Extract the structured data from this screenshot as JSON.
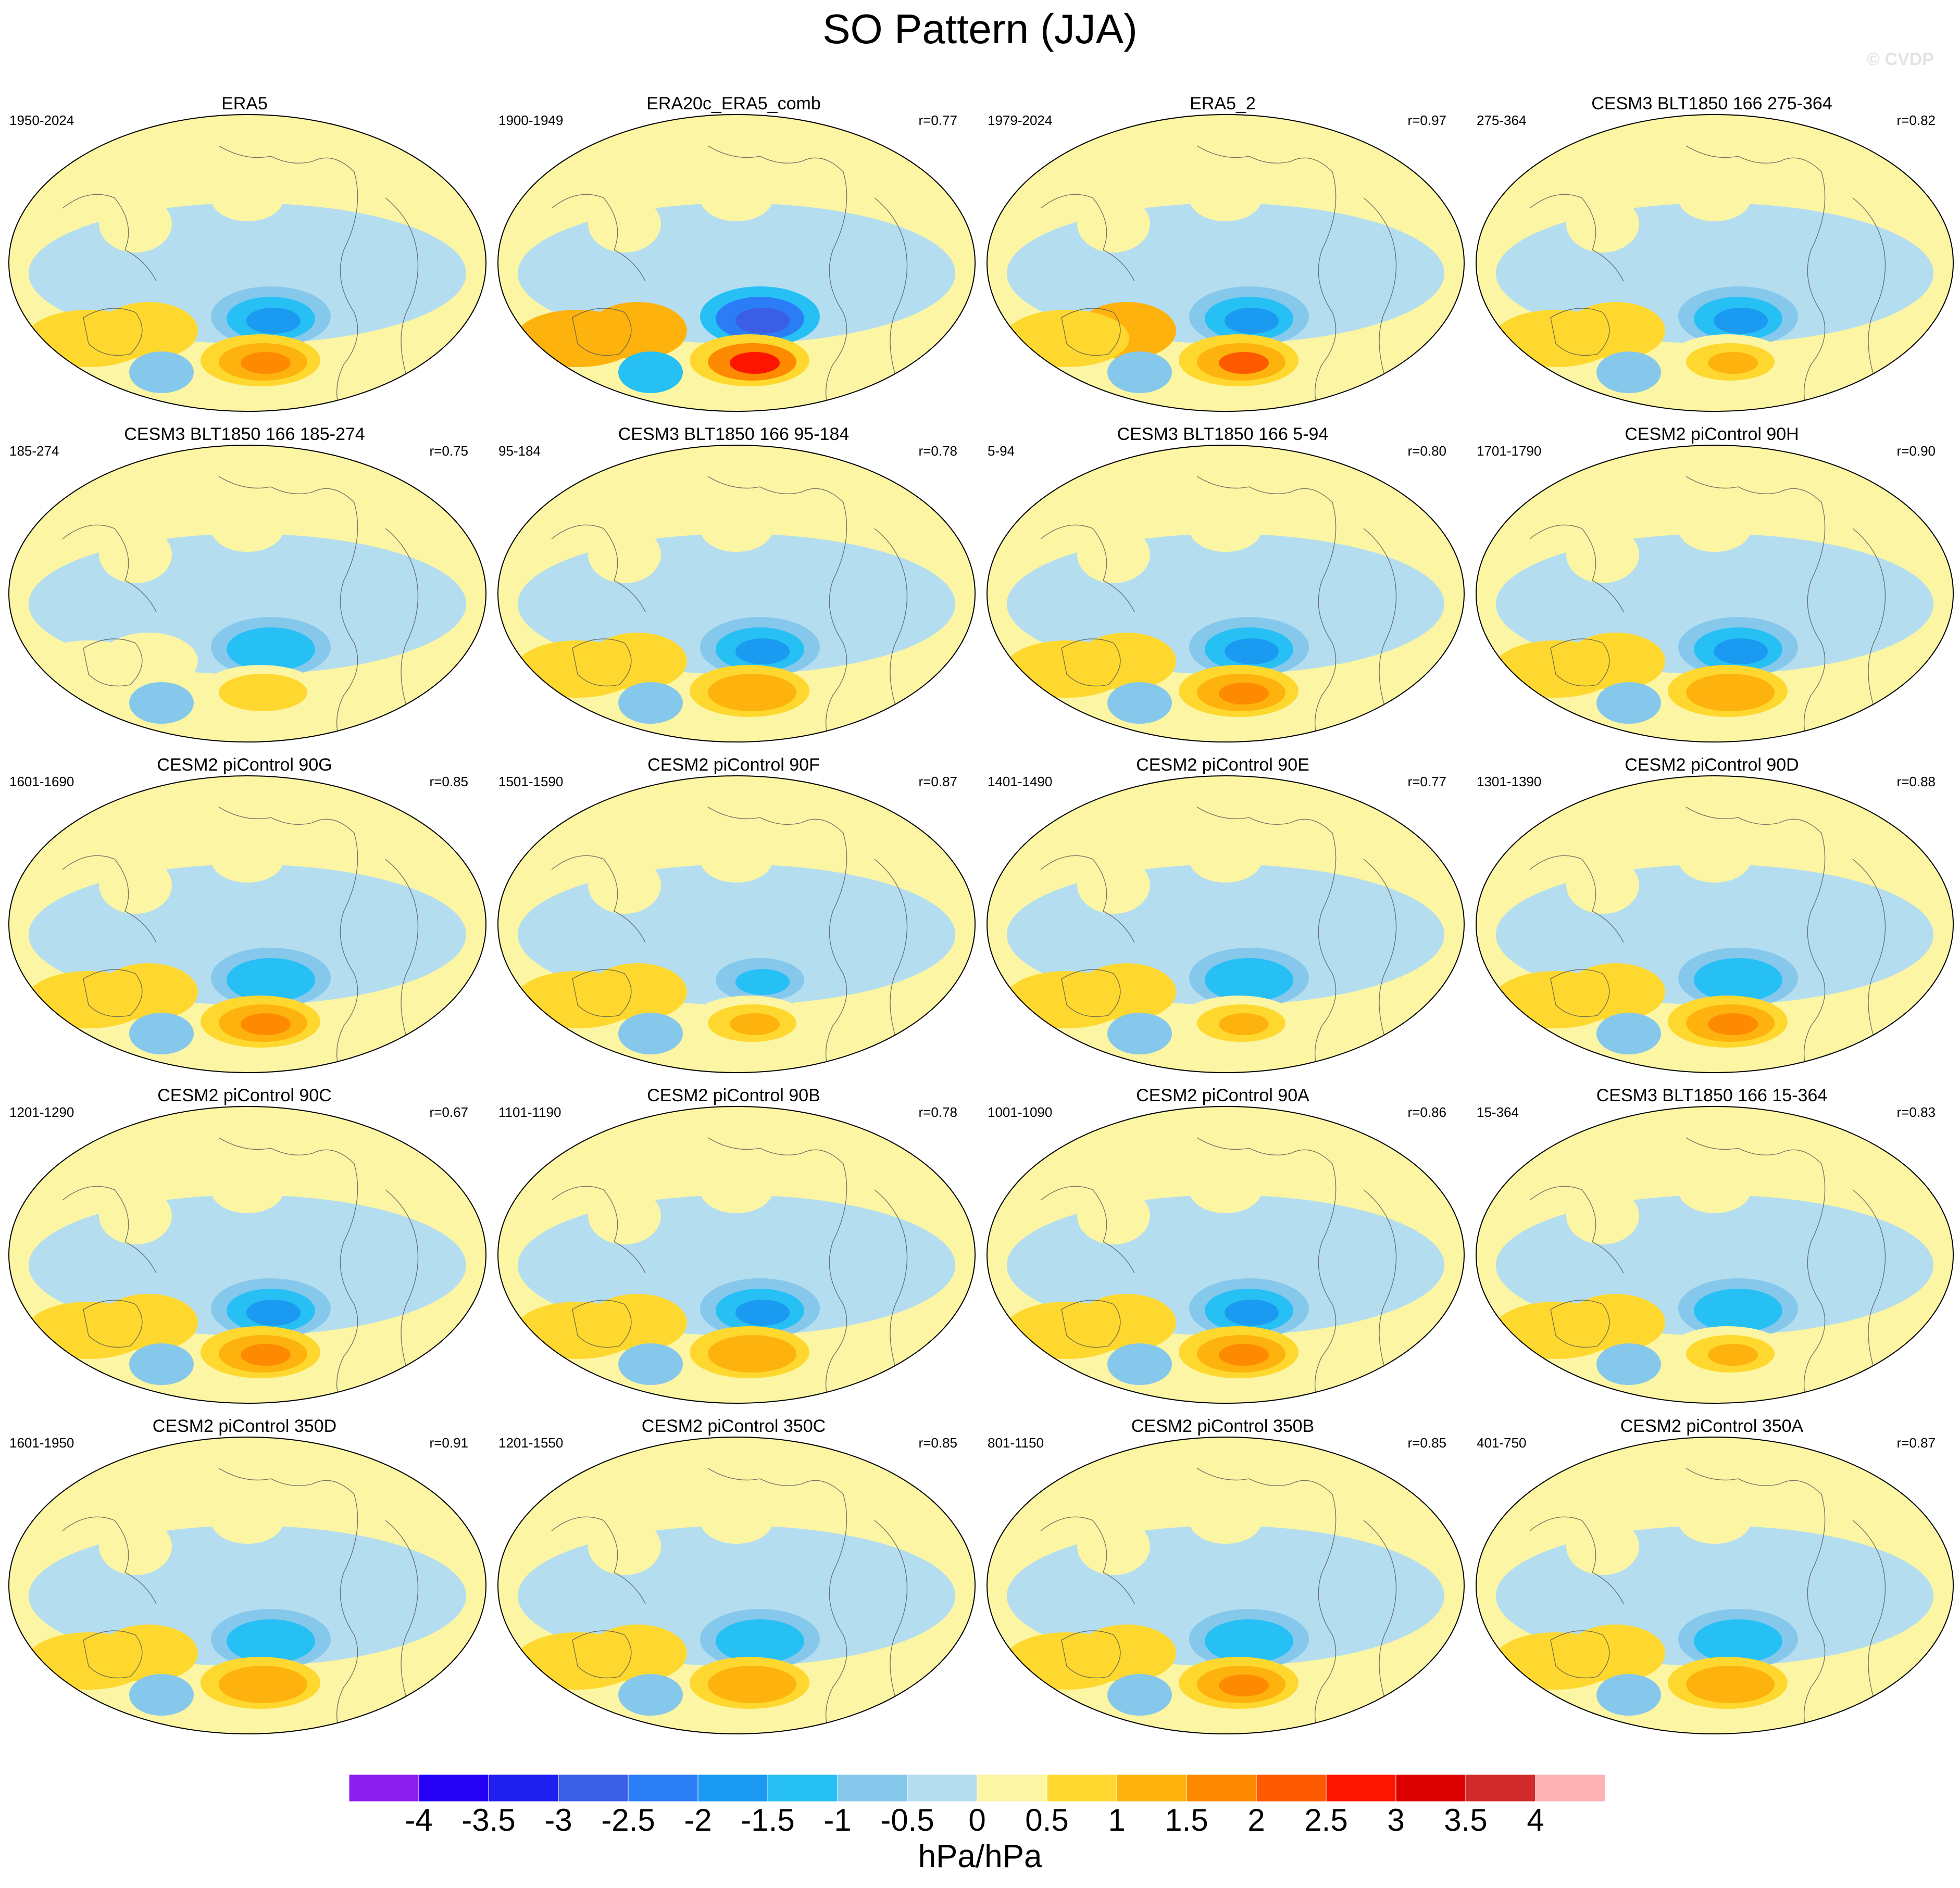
{
  "title": "SO Pattern (JJA)",
  "watermark": "© CVDP",
  "chart_data": {
    "type": "heatmap",
    "title": "SO Pattern (JJA)",
    "projection": "global map panels, 5 rows x 4 columns",
    "units": "hPa/hPa",
    "colorbar": {
      "ticks": [
        "-4",
        "-3.5",
        "-3",
        "-2.5",
        "-2",
        "-1.5",
        "-1",
        "-0.5",
        "0",
        "0.5",
        "1",
        "1.5",
        "2",
        "2.5",
        "3",
        "3.5",
        "4"
      ],
      "colors": [
        "#8a1ff0",
        "#2500f5",
        "#1f1ff0",
        "#3a5fe6",
        "#2b7df5",
        "#1a9af0",
        "#27c0f5",
        "#86c8ec",
        "#b4def0",
        "#fbf5a4",
        "#fed82e",
        "#fdb20e",
        "#fd8a00",
        "#fd5a00",
        "#fe1500",
        "#dd0000",
        "#d22a2a",
        "#fdb3b3"
      ]
    },
    "panels": [
      {
        "name": "ERA5",
        "years": "1950-2024",
        "r": "",
        "pos_amp": 2.2,
        "neg_amp": -1.9
      },
      {
        "name": "ERA20c_ERA5_comb",
        "years": "1900-1949",
        "r": "r=0.77",
        "pos_amp": 2.8,
        "neg_amp": -3.2
      },
      {
        "name": "ERA5_2",
        "years": "1979-2024",
        "r": "r=0.97",
        "pos_amp": 2.3,
        "neg_amp": -2.1
      },
      {
        "name": "CESM3 BLT1850 166 275-364",
        "years": "275-364",
        "r": "r=0.82",
        "pos_amp": 1.2,
        "neg_amp": -1.7
      },
      {
        "name": "CESM3 BLT1850 166 185-274",
        "years": "185-274",
        "r": "r=0.75",
        "pos_amp": 0.9,
        "neg_amp": -1.6
      },
      {
        "name": "CESM3 BLT1850 166 95-184",
        "years": "95-184",
        "r": "r=0.78",
        "pos_amp": 1.6,
        "neg_amp": -1.7
      },
      {
        "name": "CESM3 BLT1850 166 5-94",
        "years": "5-94",
        "r": "r=0.80",
        "pos_amp": 1.8,
        "neg_amp": -1.7
      },
      {
        "name": "CESM2 piControl 90H",
        "years": "1701-1790",
        "r": "r=0.90",
        "pos_amp": 1.6,
        "neg_amp": -1.7
      },
      {
        "name": "CESM2 piControl 90G",
        "years": "1601-1690",
        "r": "r=0.85",
        "pos_amp": 1.7,
        "neg_amp": -1.6
      },
      {
        "name": "CESM2 piControl 90F",
        "years": "1501-1590",
        "r": "r=0.87",
        "pos_amp": 1.3,
        "neg_amp": -1.4
      },
      {
        "name": "CESM2 piControl 90E",
        "years": "1401-1490",
        "r": "r=0.77",
        "pos_amp": 1.2,
        "neg_amp": -1.6
      },
      {
        "name": "CESM2 piControl 90D",
        "years": "1301-1390",
        "r": "r=0.88",
        "pos_amp": 1.8,
        "neg_amp": -1.6
      },
      {
        "name": "CESM2 piControl 90C",
        "years": "1201-1290",
        "r": "r=0.67",
        "pos_amp": 1.8,
        "neg_amp": -1.7
      },
      {
        "name": "CESM2 piControl 90B",
        "years": "1101-1190",
        "r": "r=0.78",
        "pos_amp": 1.6,
        "neg_amp": -1.7
      },
      {
        "name": "CESM2 piControl 90A",
        "years": "1001-1090",
        "r": "r=0.86",
        "pos_amp": 1.7,
        "neg_amp": -1.7
      },
      {
        "name": "CESM3 BLT1850 166 15-364",
        "years": "15-364",
        "r": "r=0.83",
        "pos_amp": 1.3,
        "neg_amp": -1.6
      },
      {
        "name": "CESM2 piControl 350D",
        "years": "1601-1950",
        "r": "r=0.91",
        "pos_amp": 1.6,
        "neg_amp": -1.6
      },
      {
        "name": "CESM2 piControl 350C",
        "years": "1201-1550",
        "r": "r=0.85",
        "pos_amp": 1.6,
        "neg_amp": -1.6
      },
      {
        "name": "CESM2 piControl 350B",
        "years": "801-1150",
        "r": "r=0.85",
        "pos_amp": 1.7,
        "neg_amp": -1.6
      },
      {
        "name": "CESM2 piControl 350A",
        "years": "401-750",
        "r": "r=0.87",
        "pos_amp": 1.6,
        "neg_amp": -1.6
      }
    ]
  }
}
